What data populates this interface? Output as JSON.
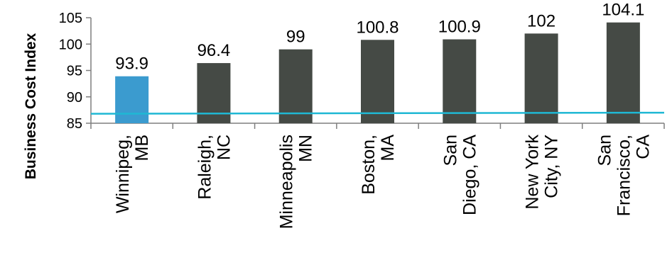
{
  "chart_data": {
    "type": "bar",
    "ylabel": "Business Cost Index",
    "xlabel": "",
    "ylim": [
      85,
      105
    ],
    "yticks": [
      85,
      90,
      95,
      100,
      105
    ],
    "categories": [
      [
        "Winnipeg,",
        "MB"
      ],
      [
        "Raleigh,",
        "NC"
      ],
      [
        "Minneapolis",
        "MN"
      ],
      [
        "Boston,",
        "MA"
      ],
      [
        "San",
        "Diego, CA"
      ],
      [
        "New York",
        "City, NY"
      ],
      [
        "San",
        "Francisco,",
        "CA"
      ]
    ],
    "values": [
      93.9,
      96.4,
      99,
      100.8,
      100.9,
      102,
      104.1
    ],
    "value_labels": [
      "93.9",
      "96.4",
      "99",
      "100.8",
      "100.9",
      "102",
      "104.1"
    ],
    "bar_colors": [
      "#3b9bcf",
      "#454a45",
      "#454a45",
      "#454a45",
      "#454a45",
      "#454a45",
      "#454a45"
    ],
    "reference_line": {
      "y_start": 86.8,
      "y_end": 87.0,
      "color": "#1fb8d4"
    },
    "axis_color": "#7f7f7f",
    "grid": false
  }
}
